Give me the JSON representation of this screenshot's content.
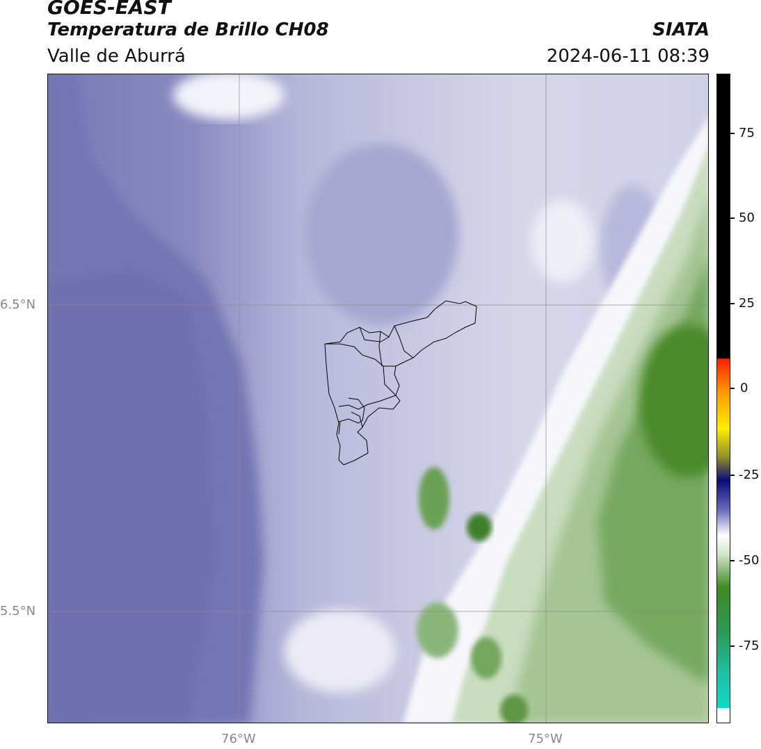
{
  "header": {
    "satellite": "GOES-EAST",
    "product": "Temperatura de Brillo CH08",
    "region": "Valle de Aburrá",
    "agency": "SIATA",
    "datetime": "2024-06-11 08:39"
  },
  "map": {
    "lat_labels": [
      "6.5°N",
      "5.5°N"
    ],
    "lon_labels": [
      "76°W",
      "75°W"
    ]
  },
  "colorbar": {
    "ticks": [
      "75",
      "50",
      "25",
      "0",
      "-25",
      "-50",
      "-75"
    ],
    "colors": {
      "black": "#000000",
      "red": "#ff2000",
      "orange": "#ff9a00",
      "yellow": "#ffee00",
      "olive": "#8c8c30",
      "navy": "#0a0a7a",
      "lavender": "#a8a8d4",
      "white": "#ffffff",
      "green": "#3f8a24",
      "teal": "#0ed9c8"
    }
  },
  "colors": {
    "purple_dark": "#7070b2",
    "purple_mid": "#9a9ace",
    "purple_light": "#c9c9e4",
    "white": "#f7f7fb",
    "green_light": "#c7dcbc",
    "green_dark": "#4d8b30"
  }
}
